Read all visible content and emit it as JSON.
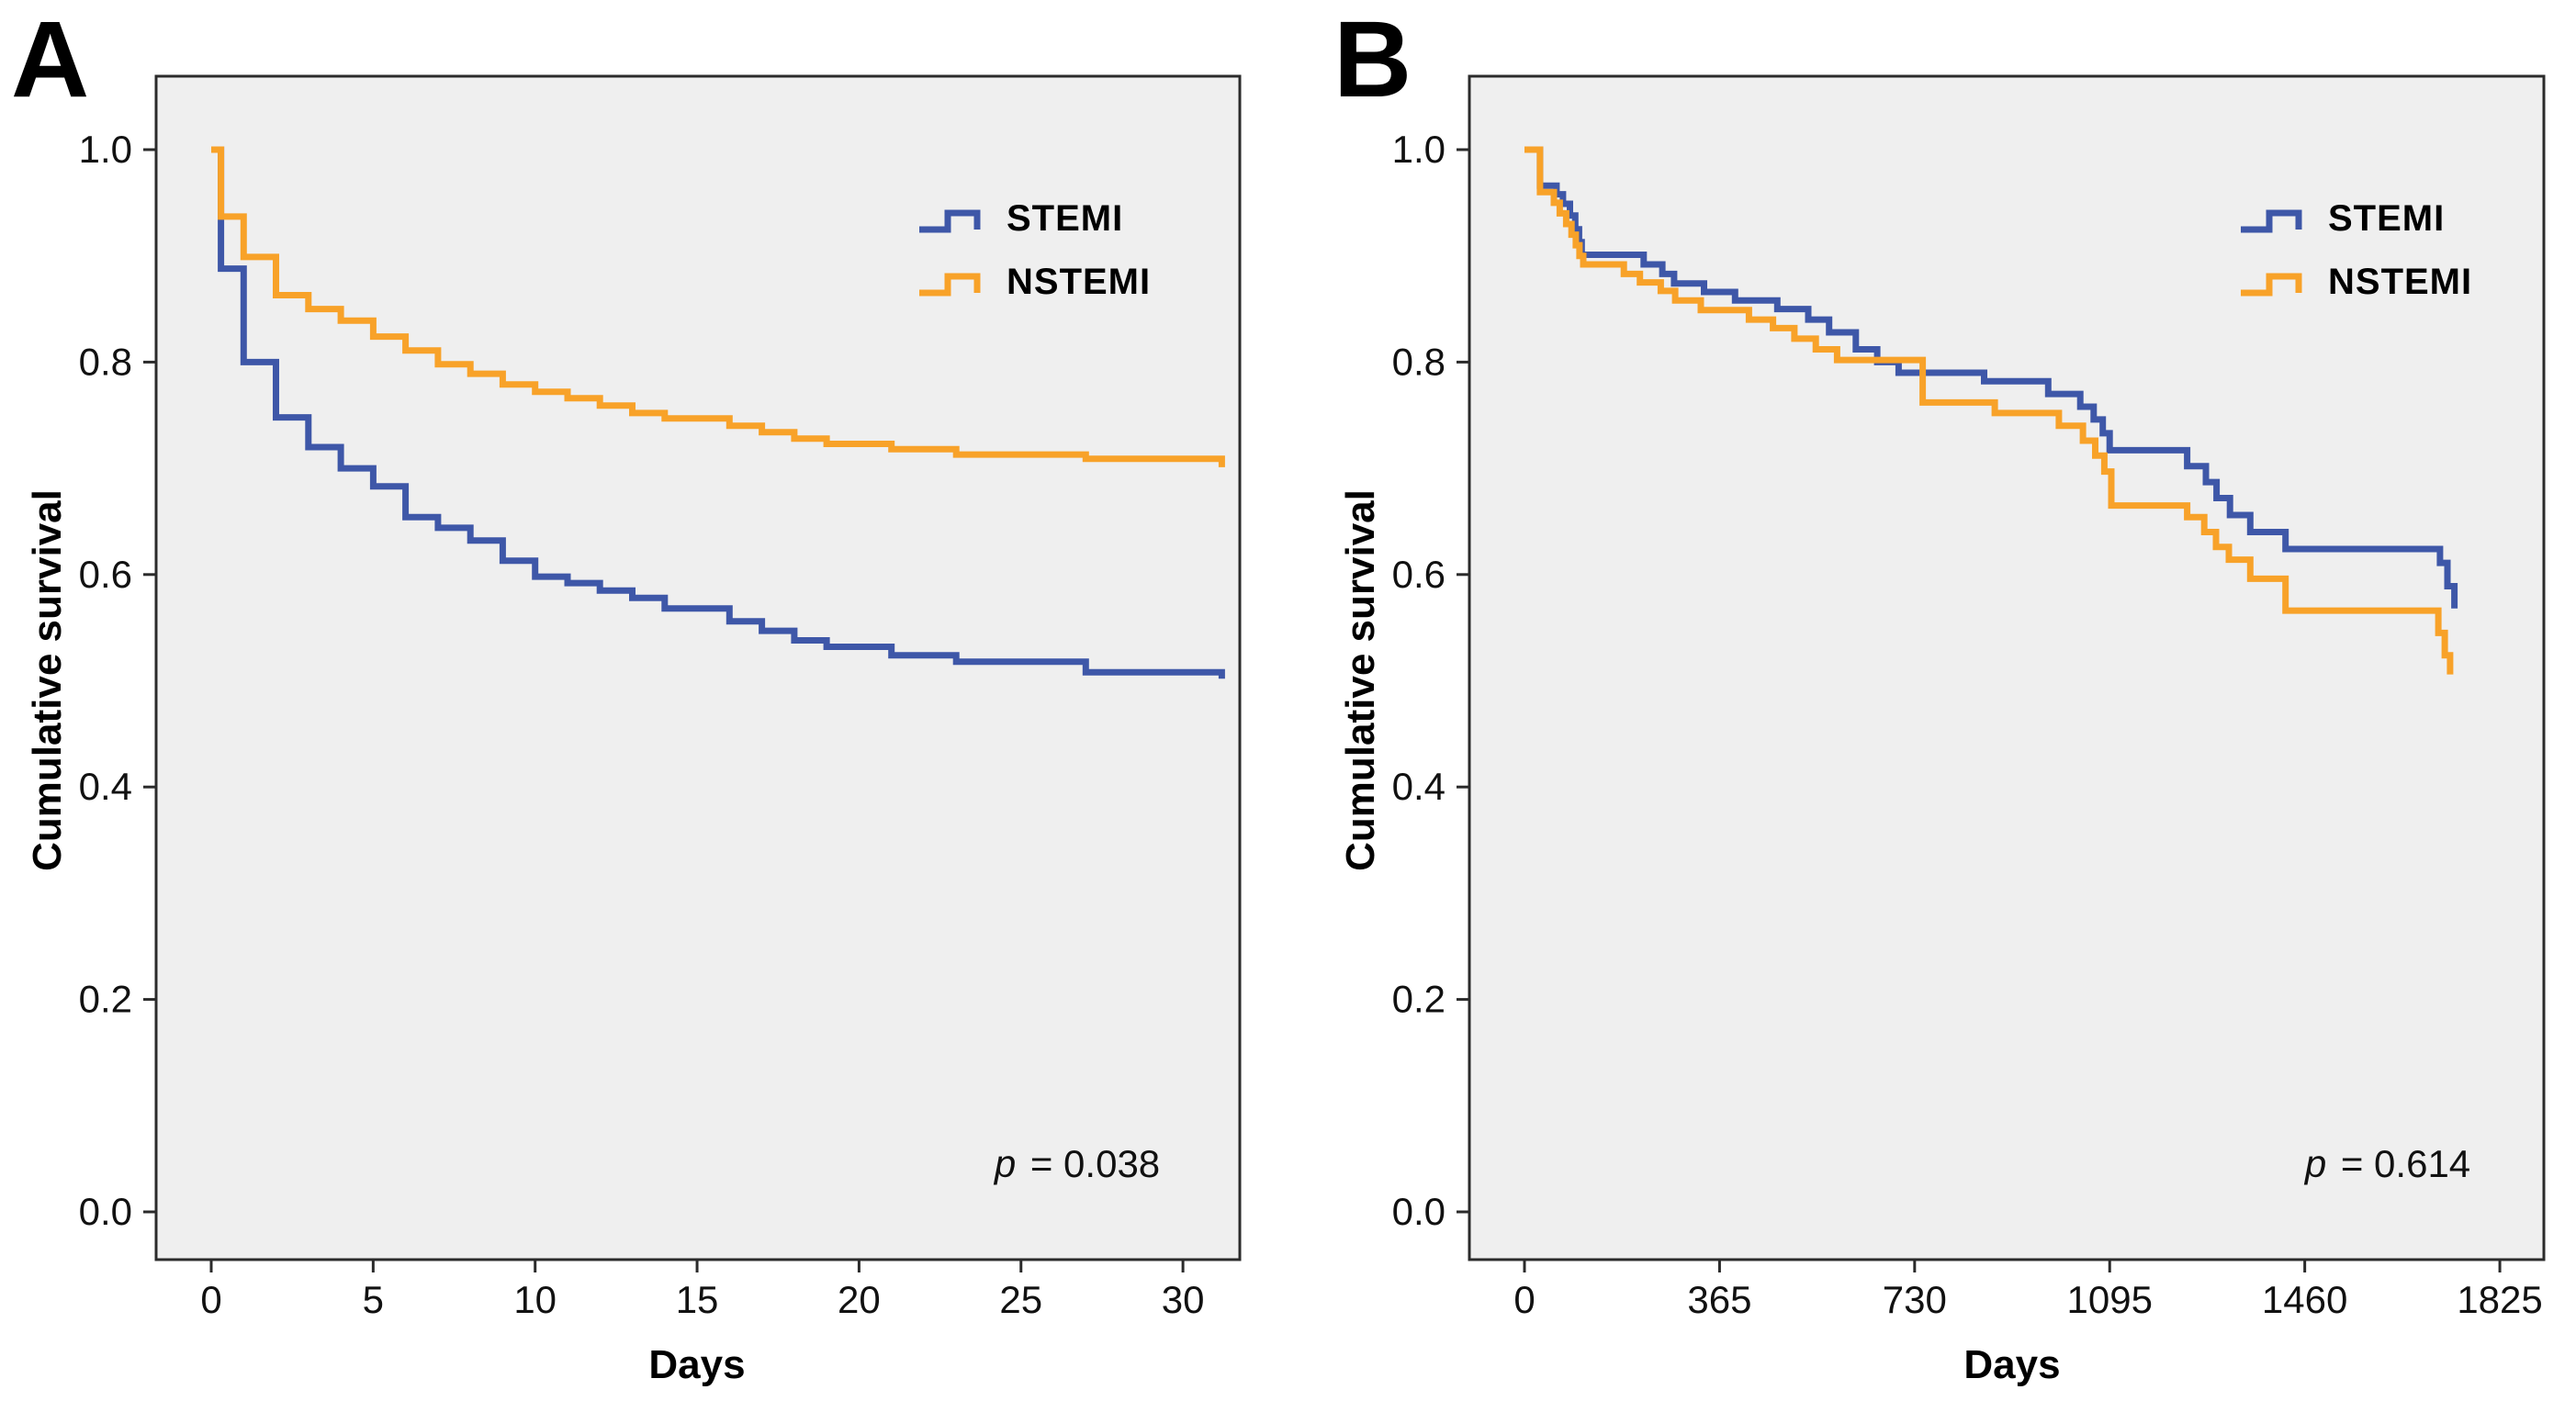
{
  "figure": {
    "plot_bg": "#EFEFEF",
    "frame_color": "#2B2B2B",
    "text_color": "#111111",
    "series_colors": {
      "stemi": "#3E57A8",
      "nstemi": "#F8A229"
    }
  },
  "chart_data": [
    {
      "panel_label": "A",
      "type": "line",
      "subtype": "kaplan-meier-step",
      "title": "",
      "xlabel": "Days",
      "ylabel": "Cumulative survival",
      "xlim": [
        0,
        31.5
      ],
      "ylim": [
        0.0,
        1.05
      ],
      "x_ticks": [
        0,
        5,
        10,
        15,
        20,
        25,
        30
      ],
      "y_ticks": [
        1.0,
        0.8,
        0.6,
        0.4,
        0.2,
        0.0
      ],
      "y_tick_labels": [
        "1.0",
        "0.8",
        "0.6",
        "0.4",
        "0.2",
        "0.0"
      ],
      "grid": "off",
      "legend_position": "upper-right-inside",
      "p_value_symbol": "p",
      "p_value_text": " = 0.038",
      "series": [
        {
          "name": "STEMI",
          "color": "#3E57A8",
          "points": [
            [
              0,
              1.0
            ],
            [
              0.3,
              0.888
            ],
            [
              1,
              0.8
            ],
            [
              2,
              0.748
            ],
            [
              3,
              0.72
            ],
            [
              4,
              0.7
            ],
            [
              5,
              0.683
            ],
            [
              6,
              0.654
            ],
            [
              7,
              0.644
            ],
            [
              8,
              0.632
            ],
            [
              9,
              0.613
            ],
            [
              10,
              0.598
            ],
            [
              11,
              0.592
            ],
            [
              12,
              0.585
            ],
            [
              13,
              0.578
            ],
            [
              14,
              0.568
            ],
            [
              16,
              0.556
            ],
            [
              17,
              0.547
            ],
            [
              18,
              0.538
            ],
            [
              19,
              0.532
            ],
            [
              21,
              0.524
            ],
            [
              23,
              0.518
            ],
            [
              27,
              0.508
            ],
            [
              31.2,
              0.502
            ]
          ]
        },
        {
          "name": "NSTEMI",
          "color": "#F8A229",
          "points": [
            [
              0,
              1.0
            ],
            [
              0.3,
              0.937
            ],
            [
              1,
              0.899
            ],
            [
              2,
              0.863
            ],
            [
              3,
              0.85
            ],
            [
              4,
              0.839
            ],
            [
              5,
              0.824
            ],
            [
              6,
              0.811
            ],
            [
              7,
              0.798
            ],
            [
              8,
              0.789
            ],
            [
              9,
              0.779
            ],
            [
              10,
              0.772
            ],
            [
              11,
              0.766
            ],
            [
              12,
              0.759
            ],
            [
              13,
              0.752
            ],
            [
              14,
              0.747
            ],
            [
              16,
              0.74
            ],
            [
              17,
              0.734
            ],
            [
              18,
              0.728
            ],
            [
              19,
              0.723
            ],
            [
              21,
              0.718
            ],
            [
              23,
              0.713
            ],
            [
              27,
              0.709
            ],
            [
              31.2,
              0.701
            ]
          ]
        }
      ]
    },
    {
      "panel_label": "B",
      "type": "line",
      "subtype": "kaplan-meier-step",
      "title": "",
      "xlabel": "Days",
      "ylabel": "Cumulative survival",
      "xlim": [
        0,
        1900
      ],
      "ylim": [
        0.0,
        1.05
      ],
      "x_ticks": [
        0,
        365,
        730,
        1095,
        1460,
        1825
      ],
      "y_ticks": [
        1.0,
        0.8,
        0.6,
        0.4,
        0.2,
        0.0
      ],
      "y_tick_labels": [
        "1.0",
        "0.8",
        "0.6",
        "0.4",
        "0.2",
        "0.0"
      ],
      "grid": "off",
      "legend_position": "upper-right-inside",
      "p_value_symbol": "p",
      "p_value_text": " = 0.614",
      "series": [
        {
          "name": "STEMI",
          "color": "#3E57A8",
          "points": [
            [
              0,
              1.0
            ],
            [
              29,
              0.966
            ],
            [
              60,
              0.958
            ],
            [
              72,
              0.949
            ],
            [
              85,
              0.938
            ],
            [
              95,
              0.925
            ],
            [
              102,
              0.913
            ],
            [
              107,
              0.901
            ],
            [
              223,
              0.892
            ],
            [
              258,
              0.883
            ],
            [
              280,
              0.874
            ],
            [
              336,
              0.866
            ],
            [
              394,
              0.858
            ],
            [
              473,
              0.85
            ],
            [
              531,
              0.84
            ],
            [
              570,
              0.828
            ],
            [
              620,
              0.812
            ],
            [
              660,
              0.8
            ],
            [
              700,
              0.79
            ],
            [
              860,
              0.782
            ],
            [
              980,
              0.77
            ],
            [
              1040,
              0.758
            ],
            [
              1065,
              0.746
            ],
            [
              1082,
              0.733
            ],
            [
              1095,
              0.717
            ],
            [
              1240,
              0.702
            ],
            [
              1275,
              0.687
            ],
            [
              1295,
              0.672
            ],
            [
              1320,
              0.656
            ],
            [
              1358,
              0.64
            ],
            [
              1424,
              0.624
            ],
            [
              1713,
              0.611
            ],
            [
              1727,
              0.589
            ],
            [
              1740,
              0.568
            ]
          ]
        },
        {
          "name": "NSTEMI",
          "color": "#F8A229",
          "points": [
            [
              0,
              1.0
            ],
            [
              29,
              0.96
            ],
            [
              55,
              0.95
            ],
            [
              66,
              0.94
            ],
            [
              78,
              0.93
            ],
            [
              88,
              0.92
            ],
            [
              96,
              0.91
            ],
            [
              103,
              0.9
            ],
            [
              110,
              0.892
            ],
            [
              186,
              0.883
            ],
            [
              216,
              0.875
            ],
            [
              255,
              0.867
            ],
            [
              282,
              0.858
            ],
            [
              330,
              0.849
            ],
            [
              420,
              0.84
            ],
            [
              465,
              0.832
            ],
            [
              505,
              0.822
            ],
            [
              545,
              0.812
            ],
            [
              585,
              0.802
            ],
            [
              745,
              0.762
            ],
            [
              880,
              0.752
            ],
            [
              1000,
              0.74
            ],
            [
              1045,
              0.726
            ],
            [
              1068,
              0.712
            ],
            [
              1085,
              0.697
            ],
            [
              1098,
              0.665
            ],
            [
              1240,
              0.654
            ],
            [
              1272,
              0.64
            ],
            [
              1294,
              0.626
            ],
            [
              1318,
              0.614
            ],
            [
              1358,
              0.596
            ],
            [
              1424,
              0.566
            ],
            [
              1710,
              0.545
            ],
            [
              1722,
              0.524
            ],
            [
              1732,
              0.506
            ]
          ]
        }
      ]
    }
  ]
}
